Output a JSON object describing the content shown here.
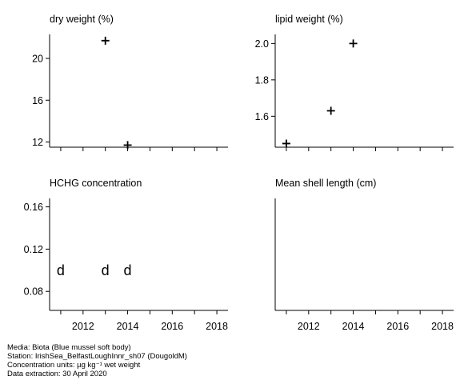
{
  "chart_data": [
    {
      "type": "scatter",
      "title": "dry weight (%)",
      "x_range": [
        2010.5,
        2018.5
      ],
      "ylim": [
        11.5,
        22.3
      ],
      "yticks": [
        12,
        16,
        20
      ],
      "xticks": [
        2012,
        2014,
        2016,
        2018
      ],
      "show_x_tick_labels": false,
      "points": [
        {
          "x": 2013,
          "y": 21.7,
          "marker": "+"
        },
        {
          "x": 2014,
          "y": 11.7,
          "marker": "+"
        }
      ]
    },
    {
      "type": "scatter",
      "title": "lipid weight (%)",
      "x_range": [
        2010.5,
        2018.5
      ],
      "ylim": [
        1.43,
        2.05
      ],
      "yticks": [
        "1.6",
        "1.8",
        "2.0"
      ],
      "xticks": [
        2012,
        2014,
        2016,
        2018
      ],
      "show_x_tick_labels": false,
      "points": [
        {
          "x": 2011,
          "y": 1.45,
          "marker": "+"
        },
        {
          "x": 2013,
          "y": 1.63,
          "marker": "+"
        },
        {
          "x": 2014,
          "y": 2.0,
          "marker": "+"
        }
      ]
    },
    {
      "type": "scatter",
      "title": "HCHG concentration",
      "x_range": [
        2010.5,
        2018.5
      ],
      "ylim": [
        0.062,
        0.168
      ],
      "yticks": [
        "0.08",
        "0.12",
        "0.16"
      ],
      "xticks": [
        2012,
        2014,
        2016,
        2018
      ],
      "show_x_tick_labels": true,
      "points": [
        {
          "x": 2011,
          "y": 0.1,
          "marker": "d"
        },
        {
          "x": 2013,
          "y": 0.1,
          "marker": "d"
        },
        {
          "x": 2014,
          "y": 0.1,
          "marker": "d"
        }
      ]
    },
    {
      "type": "scatter",
      "title": "Mean shell length (cm)",
      "x_range": [
        2010.5,
        2018.5
      ],
      "ylim": [
        0,
        1
      ],
      "yticks": [],
      "xticks": [
        2012,
        2014,
        2016,
        2018
      ],
      "show_x_tick_labels": true,
      "points": []
    }
  ],
  "footer": {
    "media": "Media: Biota (Blue mussel soft body)",
    "station": "Station: IrishSea_BelfastLoughInnr_sh07 (DougoldM)",
    "units": "Concentration units:  µg kg⁻¹ wet weight",
    "extraction": "Data extraction: 30 April 2020"
  }
}
